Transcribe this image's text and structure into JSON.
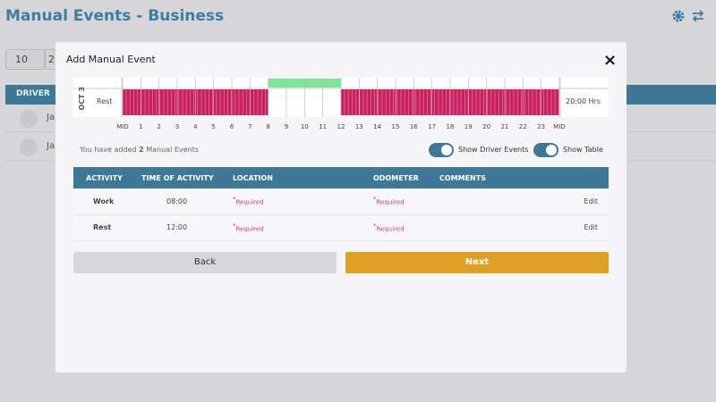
{
  "page": {
    "title": "Manual Events - Business",
    "page_size": "10",
    "page_size_next": "2",
    "table_header": "DRIVER",
    "rows": [
      "Ja",
      "Ja"
    ]
  },
  "modal": {
    "title": "Add Manual Event",
    "close": "×",
    "date_label": "OCT 3",
    "row_label": "Rest",
    "total": "20:00 Hrs",
    "hours": [
      "MID",
      "1",
      "2",
      "3",
      "4",
      "5",
      "6",
      "7",
      "8",
      "9",
      "10",
      "11",
      "12",
      "13",
      "14",
      "15",
      "16",
      "17",
      "18",
      "19",
      "20",
      "21",
      "22",
      "23",
      "MID"
    ],
    "summary": {
      "prefix": "You have added",
      "count": "2",
      "suffix": "Manual Events"
    },
    "toggles": [
      "Show Driver Events",
      "Show Table"
    ],
    "table": {
      "columns": [
        "ACTIVITY",
        "TIME OF ACTIVITY",
        "LOCATION",
        "ODOMETER",
        "COMMENTS"
      ],
      "rows": [
        {
          "activity": "Work",
          "time": "08:00",
          "location": {
            "mark": "*",
            "text": "Required"
          },
          "odometer": {
            "mark": "*",
            "text": "Required"
          },
          "action": "Edit"
        },
        {
          "activity": "Rest",
          "time": "12:00",
          "location": {
            "mark": "*",
            "text": "Required"
          },
          "odometer": {
            "mark": "*",
            "text": "Required"
          },
          "action": "Edit"
        }
      ]
    },
    "buttons": {
      "back": "Back",
      "next": "Next"
    }
  }
}
